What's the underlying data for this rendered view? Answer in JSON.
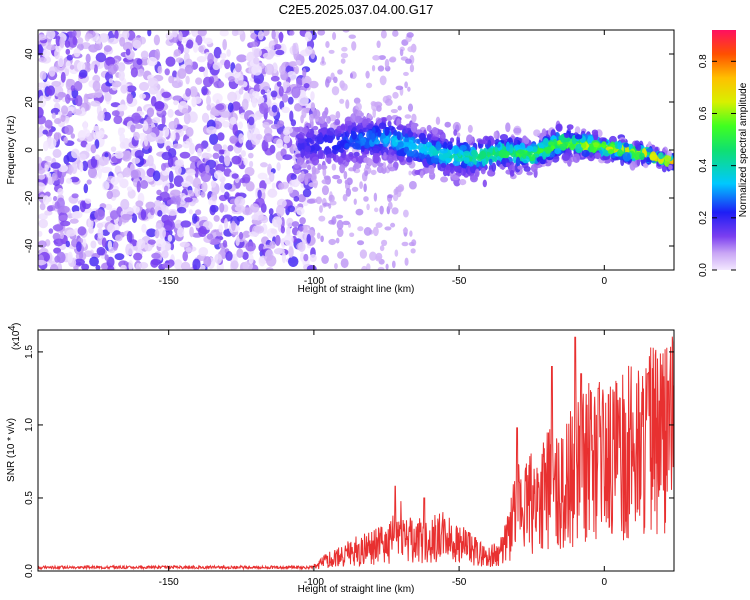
{
  "page": {
    "title": "C2E5.2025.037.04.00.G17"
  },
  "chart_data": [
    {
      "type": "heatmap",
      "title": "C2E5.2025.037.04.00.G17",
      "xlabel": "Height of straight line (km)",
      "ylabel": "Frequency (Hz)",
      "xlim": [
        -195,
        24
      ],
      "ylim": [
        -50,
        50
      ],
      "xticks": [
        -150,
        -100,
        -50,
        0
      ],
      "yticks": [
        -40,
        -20,
        0,
        20,
        40
      ],
      "colorbar": {
        "label": "Normalized spectral amplitude",
        "range": [
          0.0,
          0.92
        ],
        "ticks": [
          0.0,
          0.2,
          0.4,
          0.6,
          0.8
        ]
      },
      "ridge": {
        "x": [
          -105,
          -95,
          -85,
          -75,
          -65,
          -55,
          -45,
          -35,
          -25,
          -15,
          -5,
          5,
          15,
          24
        ],
        "y": [
          2,
          3,
          4,
          5,
          1,
          -2,
          -3,
          -1,
          -2,
          3,
          2,
          0,
          -2,
          -5
        ]
      }
    },
    {
      "type": "line",
      "xlabel": "Height of straight line (km)",
      "ylabel": "SNR (10 * v/v)",
      "scale_label": "(x10",
      "scale_exp": "4",
      "xlim": [
        -195,
        24
      ],
      "ylim": [
        0,
        1.65
      ],
      "xticks": [
        -150,
        -100,
        -50,
        0
      ],
      "yticks": [
        0.0,
        0.5,
        1.0,
        1.5
      ],
      "series": [
        {
          "x": [
            -195,
            -160,
            -120,
            -100,
            -95,
            -85,
            -75,
            -70,
            -65,
            -55,
            -50,
            -40,
            -35,
            -30,
            -25,
            -20,
            -15,
            -10,
            -5,
            0,
            5,
            10,
            15,
            20,
            24
          ],
          "y": [
            0.02,
            0.02,
            0.02,
            0.03,
            0.08,
            0.15,
            0.2,
            0.3,
            0.22,
            0.25,
            0.2,
            0.1,
            0.15,
            0.45,
            0.5,
            0.62,
            0.55,
            0.75,
            0.8,
            0.85,
            0.8,
            0.9,
            0.95,
            0.92,
            1.05
          ]
        }
      ],
      "peaks": {
        "x": [
          -72,
          -62,
          -30,
          -18,
          -10,
          -8,
          -2,
          15,
          22
        ],
        "y": [
          0.58,
          0.5,
          0.98,
          1.4,
          1.6,
          1.35,
          1.25,
          1.35,
          1.3
        ]
      }
    }
  ]
}
